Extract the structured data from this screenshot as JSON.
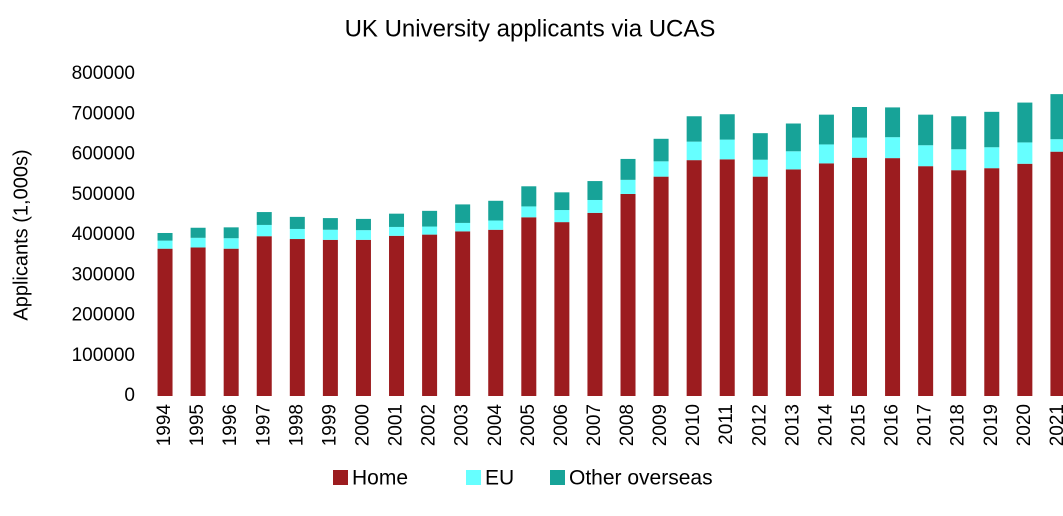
{
  "chart_data": {
    "type": "stacked_bar",
    "title": "UK University applicants via UCAS",
    "y_label": "Applicants (1,000s)",
    "categories": [
      "1994",
      "1995",
      "1996",
      "1997",
      "1998",
      "1999",
      "2000",
      "2001",
      "2002",
      "2003",
      "2004",
      "2005",
      "2006",
      "2007",
      "2008",
      "2009",
      "2010",
      "2011",
      "2012",
      "2013",
      "2014",
      "2015",
      "2016",
      "2017",
      "2018",
      "2019",
      "2020",
      "2021"
    ],
    "series": [
      {
        "name": "Home",
        "color": "#9c1c1f",
        "values": [
          366000,
          369000,
          366000,
          397000,
          390000,
          388000,
          388000,
          398000,
          401000,
          409000,
          413000,
          444000,
          432000,
          455000,
          502000,
          545000,
          586000,
          588000,
          545000,
          563000,
          578000,
          592000,
          591000,
          571000,
          561000,
          566000,
          577000,
          607000
        ]
      },
      {
        "name": "EU",
        "color": "#66ffff",
        "values": [
          20000,
          24000,
          26000,
          28000,
          25000,
          25000,
          24000,
          22000,
          20000,
          21000,
          23000,
          27000,
          30000,
          32000,
          35000,
          38000,
          46000,
          49000,
          42000,
          45000,
          47000,
          50000,
          52000,
          52000,
          52000,
          52000,
          53000,
          31000
        ]
      },
      {
        "name": "Other overseas",
        "color": "#17a398",
        "values": [
          19000,
          25000,
          27000,
          32000,
          30000,
          29000,
          28000,
          33000,
          39000,
          46000,
          49000,
          50000,
          44000,
          47000,
          52000,
          56000,
          63000,
          63000,
          66000,
          69000,
          74000,
          76000,
          74000,
          76000,
          82000,
          88000,
          99000,
          112000
        ]
      }
    ],
    "ylim": [
      0,
      800000
    ],
    "yticks": [
      0,
      100000,
      200000,
      300000,
      400000,
      500000,
      600000,
      700000,
      800000
    ],
    "grid": false,
    "legend": "bottom"
  }
}
